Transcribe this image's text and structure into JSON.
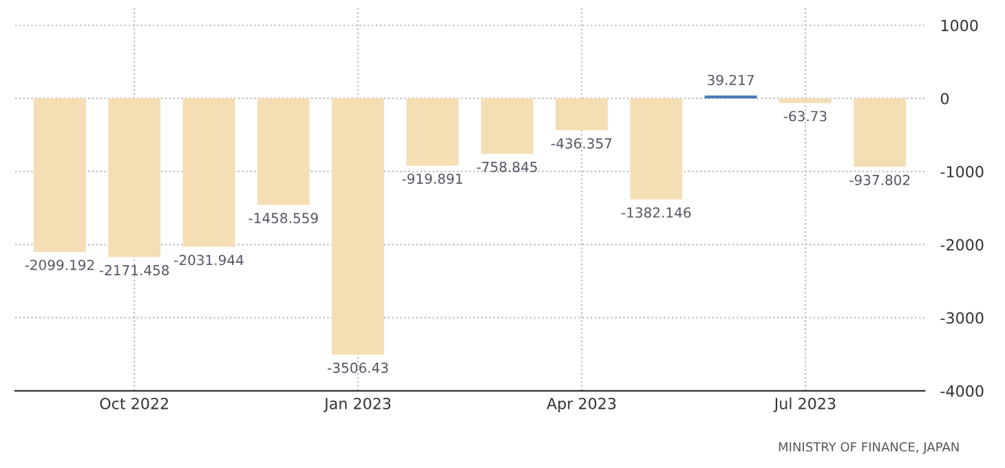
{
  "chart_data": {
    "type": "bar",
    "categories": [
      null,
      "Oct 2022",
      null,
      null,
      "Jan 2023",
      null,
      null,
      "Apr 2023",
      null,
      null,
      "Jul 2023",
      null
    ],
    "values": [
      -2099.192,
      -2171.458,
      -2031.944,
      -1458.559,
      -3506.43,
      -919.891,
      -758.845,
      -436.357,
      -1382.146,
      39.217,
      -63.73,
      -937.802
    ],
    "colors": [
      "#f5deb3",
      "#f5deb3",
      "#f5deb3",
      "#f5deb3",
      "#f5deb3",
      "#f5deb3",
      "#f5deb3",
      "#f5deb3",
      "#f5deb3",
      "#4a7ab5",
      "#f5deb3",
      "#f5deb3"
    ],
    "ylim": [
      -4000,
      1250
    ],
    "yticks": [
      -4000,
      -3000,
      -2000,
      -1000,
      0,
      1000
    ],
    "grid": true,
    "data_labels": true,
    "annotations": [
      "MINISTRY OF FINANCE, JAPAN"
    ]
  }
}
